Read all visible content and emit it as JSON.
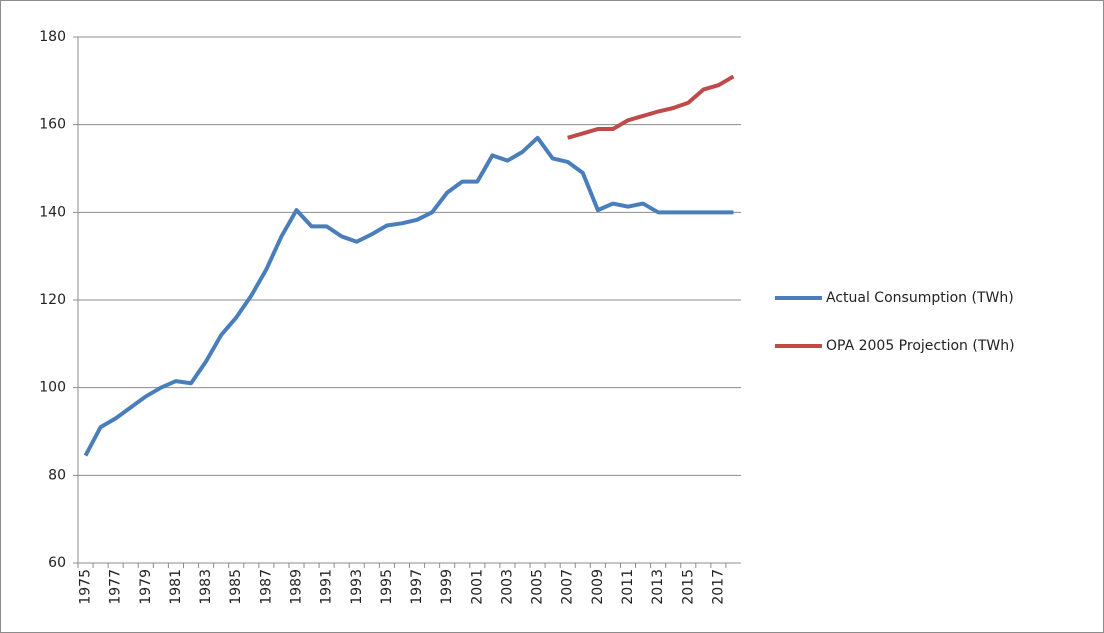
{
  "chart_data": {
    "type": "line",
    "categories": [
      "1975",
      null,
      "1977",
      null,
      "1979",
      null,
      "1981",
      null,
      "1983",
      null,
      "1985",
      null,
      "1987",
      null,
      "1989",
      null,
      "1991",
      null,
      "1993",
      null,
      "1995",
      null,
      "1997",
      null,
      "1999",
      null,
      "2001",
      null,
      "2003",
      null,
      "2005",
      null,
      "2007",
      null,
      "2009",
      null,
      "2011",
      null,
      "2013",
      null,
      "2015",
      null,
      "2017",
      null
    ],
    "series": [
      {
        "name": "Actual Consumption (TWh)",
        "color": "#4a7ebb",
        "values": [
          84.5,
          91,
          93,
          95.5,
          98,
          100,
          101.5,
          101,
          106,
          112,
          116,
          121,
          127,
          134.5,
          140.5,
          136.8,
          136.8,
          134.5,
          133.3,
          135,
          137,
          137.5,
          138.3,
          140,
          144.5,
          147,
          147,
          153,
          151.8,
          153.8,
          157,
          152.3,
          151.5,
          149,
          140.5,
          142,
          141.3,
          142,
          140,
          140,
          140,
          140,
          140,
          140
        ]
      },
      {
        "name": "OPA 2005 Projection (TWh)",
        "color": "#be4b48",
        "values": [
          null,
          null,
          null,
          null,
          null,
          null,
          null,
          null,
          null,
          null,
          null,
          null,
          null,
          null,
          null,
          null,
          null,
          null,
          null,
          null,
          null,
          null,
          null,
          null,
          null,
          null,
          null,
          null,
          null,
          null,
          null,
          null,
          157,
          158,
          159,
          159,
          161,
          162,
          163,
          163.8,
          165,
          168,
          169,
          171
        ]
      }
    ],
    "ylim": [
      60,
      180
    ],
    "yticks": [
      60,
      80,
      100,
      120,
      140,
      160,
      180
    ],
    "grid": true,
    "legend": "right"
  }
}
